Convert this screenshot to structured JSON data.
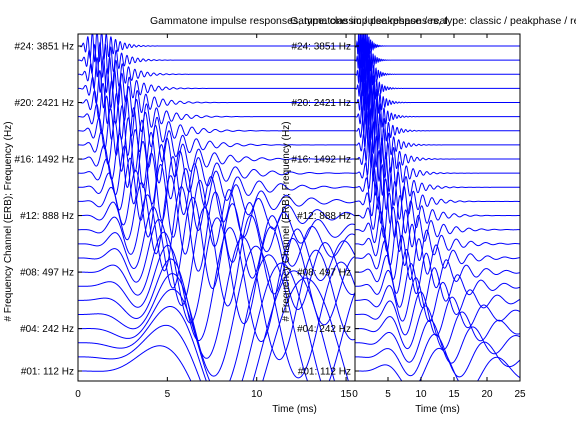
{
  "titles": [
    "Gammatone impulse responses, type: classic / peakphase / real",
    "Gammatone impulse responses, type: classic / peakphase / real"
  ],
  "chart_data": [
    {
      "type": "line",
      "title": "Gammatone impulse responses, type: classic / peakphase / real",
      "xlabel": "Time (ms)",
      "ylabel": "# Frequency Channel (ERB); Frequency (Hz)",
      "xlim": [
        0,
        15.5
      ],
      "xticks": [
        "0",
        "5",
        "10",
        "15"
      ],
      "ytick_labels": [
        "#01: 112 Hz",
        "#04: 242 Hz",
        "#08: 497 Hz",
        "#12: 888 Hz",
        "#16: 1492 Hz",
        "#20: 2421 Hz",
        "#24: 3851 Hz"
      ],
      "channels": 24,
      "freq_range_hz": [
        112,
        3851
      ],
      "color": "#0000ff",
      "grid": false
    },
    {
      "type": "line",
      "title": "Gammatone impulse responses, type: classic / peakphase / real",
      "xlabel": "Time (ms)",
      "ylabel": "# Frequency Channel (ERB); Frequency (Hz)",
      "xlim": [
        0,
        25
      ],
      "xticks": [
        "0",
        "5",
        "10",
        "15",
        "20",
        "25"
      ],
      "ytick_labels": [
        "#01: 112 Hz",
        "#04: 242 Hz",
        "#08: 497 Hz",
        "#12: 888 Hz",
        "#16: 1492 Hz",
        "#20: 2421 Hz",
        "#24: 3851 Hz"
      ],
      "channels": 24,
      "freq_range_hz": [
        112,
        3851
      ],
      "color": "#0000ff",
      "grid": false
    }
  ]
}
